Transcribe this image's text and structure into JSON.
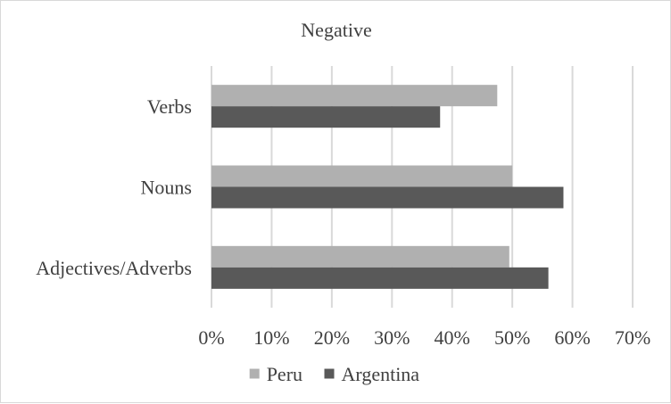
{
  "chart_data": {
    "type": "bar",
    "orientation": "horizontal",
    "title": "Negative",
    "xlabel": "",
    "ylabel": "",
    "categories": [
      "Verbs",
      "Nouns",
      "Adjectives/Adverbs"
    ],
    "series": [
      {
        "name": "Peru",
        "color": "#b0b0b0",
        "values": [
          0.475,
          0.5,
          0.495
        ]
      },
      {
        "name": "Argentina",
        "color": "#595959",
        "values": [
          0.38,
          0.585,
          0.56
        ]
      }
    ],
    "xlim": [
      0,
      0.7
    ],
    "x_ticks": [
      0,
      0.1,
      0.2,
      0.3,
      0.4,
      0.5,
      0.6,
      0.7
    ],
    "x_tick_labels": [
      "0%",
      "10%",
      "20%",
      "30%",
      "40%",
      "50%",
      "60%",
      "70%"
    ],
    "grid": "vertical",
    "legend_position": "bottom"
  }
}
